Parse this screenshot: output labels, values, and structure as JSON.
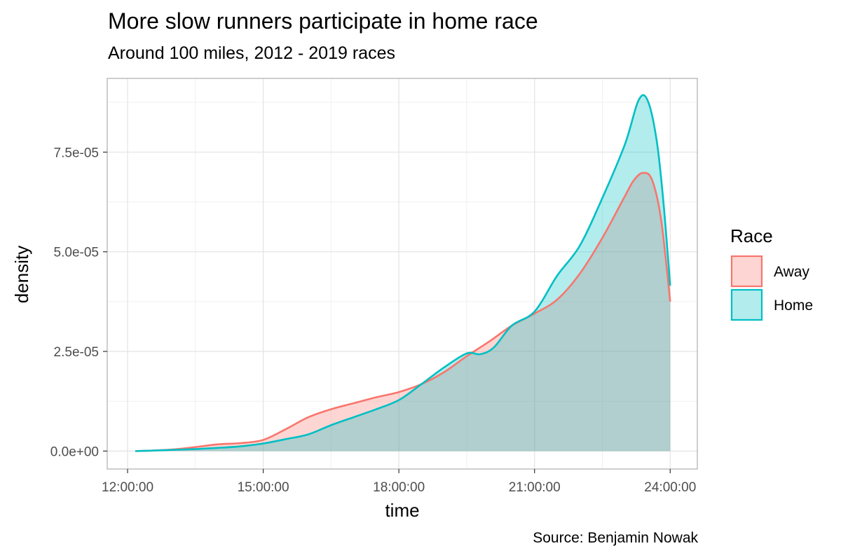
{
  "chart_data": {
    "type": "area",
    "title": "More slow runners participate in home race",
    "subtitle": "Around 100 miles, 2012 - 2019 races",
    "caption": "Source: Benjamin Nowak",
    "xlabel": "time",
    "ylabel": "density",
    "x_unit": "hours",
    "xlim": [
      11.55,
      24.6
    ],
    "ylim": [
      -4.5e-06,
      9.35e-05
    ],
    "x_ticks": [
      12,
      15,
      18,
      21,
      24
    ],
    "x_tick_labels": [
      "12:00:00",
      "15:00:00",
      "18:00:00",
      "21:00:00",
      "24:00:00"
    ],
    "y_ticks": [
      0,
      2.5e-05,
      5e-05,
      7.5e-05
    ],
    "y_tick_labels": [
      "0.0e+00",
      "2.5e-05",
      "5.0e-05",
      "7.5e-05"
    ],
    "grid": true,
    "legend": {
      "title": "Race",
      "position": "right"
    },
    "series": [
      {
        "name": "Away",
        "color": "#F8766D",
        "fill": "#F8766D",
        "x": [
          12.17,
          12.5,
          13.0,
          13.5,
          14.0,
          14.5,
          15.0,
          15.5,
          16.0,
          16.5,
          17.0,
          17.5,
          18.0,
          18.5,
          19.0,
          19.5,
          20.0,
          20.5,
          21.0,
          21.5,
          22.0,
          22.5,
          23.0,
          23.2,
          23.4,
          23.6,
          23.8,
          24.0
        ],
        "values": [
          0.0,
          1e-07,
          4e-07,
          1e-06,
          1.7e-06,
          2e-06,
          2.8e-06,
          5.5e-06,
          8.5e-06,
          1.05e-05,
          1.2e-05,
          1.35e-05,
          1.48e-05,
          1.68e-05,
          1.98e-05,
          2.38e-05,
          2.75e-05,
          3.15e-05,
          3.45e-05,
          3.8e-05,
          4.45e-05,
          5.35e-05,
          6.4e-05,
          6.8e-05,
          6.98e-05,
          6.8e-05,
          5.8e-05,
          3.75e-05
        ]
      },
      {
        "name": "Home",
        "color": "#00BFC4",
        "fill": "#00BFC4",
        "x": [
          12.17,
          12.5,
          13.0,
          13.5,
          14.0,
          14.5,
          15.0,
          15.5,
          16.0,
          16.5,
          17.0,
          17.5,
          18.0,
          18.5,
          19.0,
          19.5,
          19.8,
          20.1,
          20.5,
          21.0,
          21.5,
          22.0,
          22.5,
          23.0,
          23.3,
          23.5,
          23.7,
          23.85,
          24.0
        ],
        "values": [
          0.0,
          1e-07,
          3e-07,
          5e-07,
          8e-07,
          1.2e-06,
          1.9e-06,
          3e-06,
          4.2e-06,
          6.5e-06,
          8.5e-06,
          1.05e-05,
          1.28e-05,
          1.68e-05,
          2.1e-05,
          2.45e-05,
          2.43e-05,
          2.6e-05,
          3.15e-05,
          3.5e-05,
          4.4e-05,
          5.15e-05,
          6.35e-05,
          7.7e-05,
          8.8e-05,
          8.8e-05,
          7.8e-05,
          6.25e-05,
          4.15e-05
        ]
      }
    ]
  }
}
